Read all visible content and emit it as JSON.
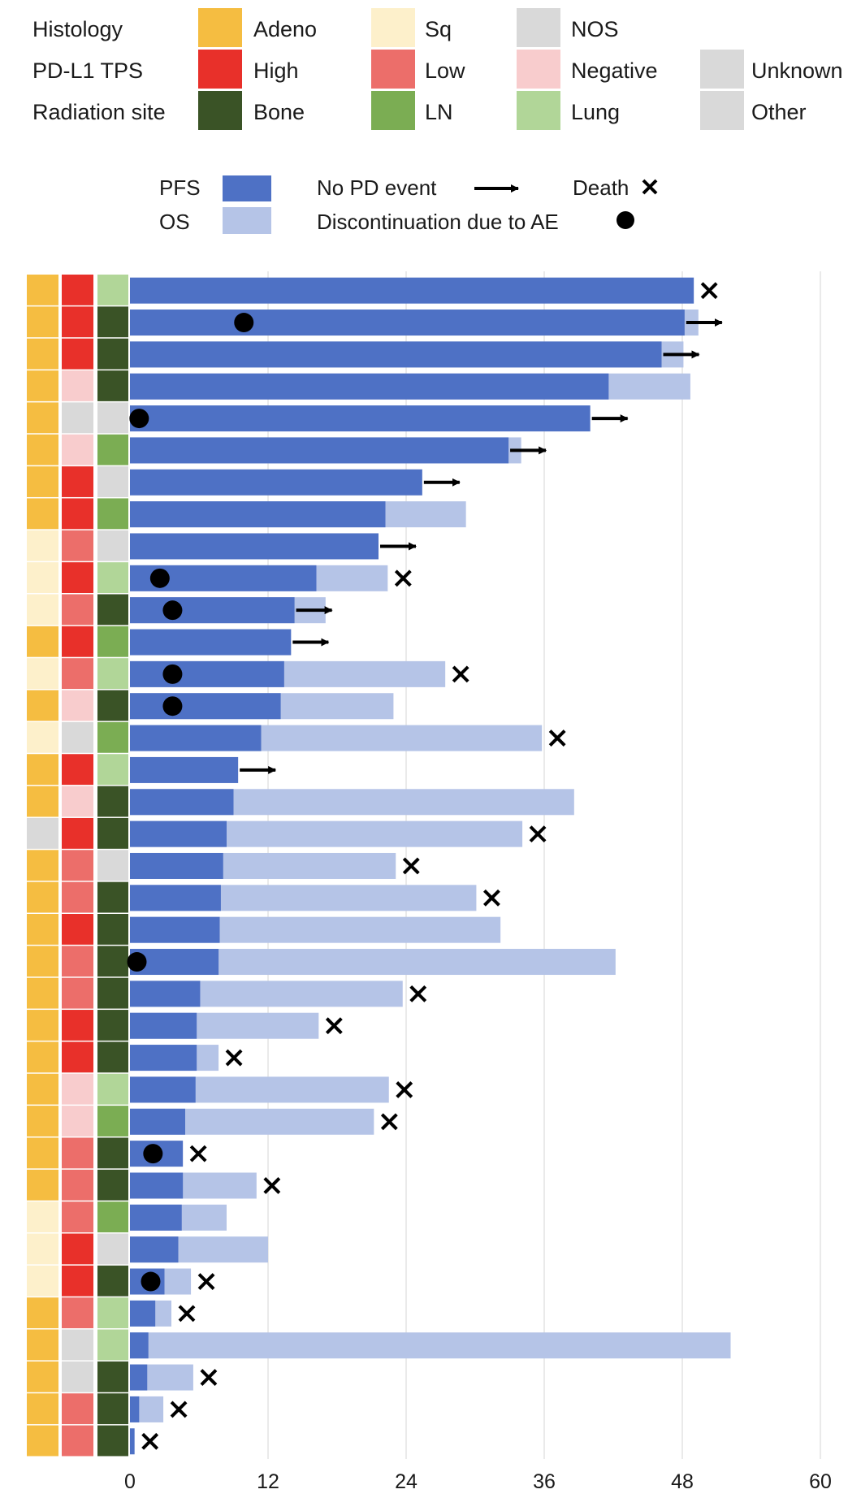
{
  "colors": {
    "adeno": "#f5bd41",
    "sq": "#fdf0cb",
    "nos": "#d9d9d9",
    "high": "#e8302a",
    "low": "#ec6e6a",
    "negative": "#f8cccd",
    "unknown": "#d9d9d9",
    "bone": "#3a5326",
    "ln": "#7bad53",
    "lung": "#b1d698",
    "other": "#d9d9d9",
    "pfs": "#4e71c5",
    "os": "#b5c4e7",
    "grid": "#e3e3e3",
    "marker": "#000000"
  },
  "legend": {
    "row_labels": [
      "Histology",
      "PD-L1 TPS",
      "Radiation site"
    ],
    "categories": [
      {
        "label": "Adeno",
        "color": "adeno"
      },
      {
        "label": "Sq",
        "color": "sq"
      },
      {
        "label": "NOS",
        "color": "nos"
      },
      {
        "label": "High",
        "color": "high"
      },
      {
        "label": "Low",
        "color": "low"
      },
      {
        "label": "Negative",
        "color": "negative"
      },
      {
        "label": "Unknown",
        "color": "unknown"
      },
      {
        "label": "Bone",
        "color": "bone"
      },
      {
        "label": "LN",
        "color": "ln"
      },
      {
        "label": "Lung",
        "color": "lung"
      },
      {
        "label": "Other",
        "color": "other"
      }
    ],
    "pfs_label": "PFS",
    "os_label": "OS",
    "no_pd_label": "No PD event",
    "death_label": "Death",
    "ae_label": "Discontinuation due to AE"
  },
  "chart_data": {
    "type": "bar",
    "orientation": "horizontal",
    "title": "",
    "xlabel": "",
    "ylabel": "",
    "xlim": [
      0,
      60
    ],
    "xticks": [
      0,
      12,
      24,
      36,
      48,
      60
    ],
    "grid": true,
    "series_names": [
      "PFS",
      "OS"
    ],
    "patients": [
      {
        "histology": "Adeno",
        "pdl1": "High",
        "site": "Lung",
        "pfs": 49.0,
        "os": 49.0,
        "death": true,
        "ongoing": false,
        "ae": null
      },
      {
        "histology": "Adeno",
        "pdl1": "High",
        "site": "Bone",
        "pfs": 48.2,
        "os": 49.4,
        "death": false,
        "ongoing": true,
        "ae": 9.9
      },
      {
        "histology": "Adeno",
        "pdl1": "High",
        "site": "Bone",
        "pfs": 46.2,
        "os": 48.1,
        "death": false,
        "ongoing": true,
        "ae": null
      },
      {
        "histology": "Adeno",
        "pdl1": "Negative",
        "site": "Bone",
        "pfs": 41.6,
        "os": 48.7,
        "death": false,
        "ongoing": false,
        "ae": null
      },
      {
        "histology": "Adeno",
        "pdl1": "Unknown",
        "site": "Other",
        "pfs": 40.0,
        "os": 40.0,
        "death": false,
        "ongoing": true,
        "ae": 0.8
      },
      {
        "histology": "Adeno",
        "pdl1": "Negative",
        "site": "LN",
        "pfs": 32.9,
        "os": 34.0,
        "death": false,
        "ongoing": true,
        "ae": null
      },
      {
        "histology": "Adeno",
        "pdl1": "High",
        "site": "Other",
        "pfs": 25.4,
        "os": 25.4,
        "death": false,
        "ongoing": true,
        "ae": null
      },
      {
        "histology": "Adeno",
        "pdl1": "High",
        "site": "LN",
        "pfs": 22.2,
        "os": 29.2,
        "death": false,
        "ongoing": false,
        "ae": null
      },
      {
        "histology": "Sq",
        "pdl1": "Low",
        "site": "Other",
        "pfs": 21.6,
        "os": 21.6,
        "death": false,
        "ongoing": true,
        "ae": null
      },
      {
        "histology": "Sq",
        "pdl1": "High",
        "site": "Lung",
        "pfs": 16.2,
        "os": 22.4,
        "death": true,
        "ongoing": false,
        "ae": 2.6
      },
      {
        "histology": "Sq",
        "pdl1": "Low",
        "site": "Bone",
        "pfs": 14.3,
        "os": 17.0,
        "death": false,
        "ongoing": true,
        "ae": 3.7
      },
      {
        "histology": "Adeno",
        "pdl1": "High",
        "site": "LN",
        "pfs": 14.0,
        "os": 14.0,
        "death": false,
        "ongoing": true,
        "ae": null
      },
      {
        "histology": "Sq",
        "pdl1": "Low",
        "site": "Lung",
        "pfs": 13.4,
        "os": 27.4,
        "death": true,
        "ongoing": false,
        "ae": 3.7
      },
      {
        "histology": "Adeno",
        "pdl1": "Negative",
        "site": "Bone",
        "pfs": 13.1,
        "os": 22.9,
        "death": false,
        "ongoing": false,
        "ae": 3.7
      },
      {
        "histology": "Sq",
        "pdl1": "Unknown",
        "site": "LN",
        "pfs": 11.4,
        "os": 35.8,
        "death": true,
        "ongoing": false,
        "ae": null
      },
      {
        "histology": "Adeno",
        "pdl1": "High",
        "site": "Lung",
        "pfs": 9.4,
        "os": 9.4,
        "death": false,
        "ongoing": true,
        "ae": null
      },
      {
        "histology": "Adeno",
        "pdl1": "Negative",
        "site": "Bone",
        "pfs": 9.0,
        "os": 38.6,
        "death": false,
        "ongoing": false,
        "ae": null
      },
      {
        "histology": "NOS",
        "pdl1": "High",
        "site": "Bone",
        "pfs": 8.4,
        "os": 34.1,
        "death": true,
        "ongoing": false,
        "ae": null
      },
      {
        "histology": "Adeno",
        "pdl1": "Low",
        "site": "Other",
        "pfs": 8.1,
        "os": 23.1,
        "death": true,
        "ongoing": false,
        "ae": null
      },
      {
        "histology": "Adeno",
        "pdl1": "Low",
        "site": "Bone",
        "pfs": 7.9,
        "os": 30.1,
        "death": true,
        "ongoing": false,
        "ae": null
      },
      {
        "histology": "Adeno",
        "pdl1": "High",
        "site": "Bone",
        "pfs": 7.8,
        "os": 32.2,
        "death": false,
        "ongoing": false,
        "ae": null
      },
      {
        "histology": "Adeno",
        "pdl1": "Low",
        "site": "Bone",
        "pfs": 7.7,
        "os": 42.2,
        "death": false,
        "ongoing": false,
        "ae": 0.6
      },
      {
        "histology": "Adeno",
        "pdl1": "Low",
        "site": "Bone",
        "pfs": 6.1,
        "os": 23.7,
        "death": true,
        "ongoing": false,
        "ae": null
      },
      {
        "histology": "Adeno",
        "pdl1": "High",
        "site": "Bone",
        "pfs": 5.8,
        "os": 16.4,
        "death": true,
        "ongoing": false,
        "ae": null
      },
      {
        "histology": "Adeno",
        "pdl1": "High",
        "site": "Bone",
        "pfs": 5.8,
        "os": 7.7,
        "death": true,
        "ongoing": false,
        "ae": null
      },
      {
        "histology": "Adeno",
        "pdl1": "Negative",
        "site": "Lung",
        "pfs": 5.7,
        "os": 22.5,
        "death": true,
        "ongoing": false,
        "ae": null
      },
      {
        "histology": "Adeno",
        "pdl1": "Negative",
        "site": "LN",
        "pfs": 4.8,
        "os": 21.2,
        "death": true,
        "ongoing": false,
        "ae": null
      },
      {
        "histology": "Adeno",
        "pdl1": "Low",
        "site": "Bone",
        "pfs": 4.6,
        "os": 4.6,
        "death": true,
        "ongoing": false,
        "ae": 2.0
      },
      {
        "histology": "Adeno",
        "pdl1": "Low",
        "site": "Bone",
        "pfs": 4.6,
        "os": 11.0,
        "death": true,
        "ongoing": false,
        "ae": null
      },
      {
        "histology": "Sq",
        "pdl1": "Low",
        "site": "LN",
        "pfs": 4.5,
        "os": 8.4,
        "death": false,
        "ongoing": false,
        "ae": null
      },
      {
        "histology": "Sq",
        "pdl1": "High",
        "site": "Other",
        "pfs": 4.2,
        "os": 12.0,
        "death": false,
        "ongoing": false,
        "ae": null
      },
      {
        "histology": "Sq",
        "pdl1": "High",
        "site": "Bone",
        "pfs": 3.0,
        "os": 5.3,
        "death": true,
        "ongoing": false,
        "ae": 1.8
      },
      {
        "histology": "Adeno",
        "pdl1": "Low",
        "site": "Lung",
        "pfs": 2.2,
        "os": 3.6,
        "death": true,
        "ongoing": false,
        "ae": null
      },
      {
        "histology": "Adeno",
        "pdl1": "Unknown",
        "site": "Lung",
        "pfs": 1.6,
        "os": 52.2,
        "death": false,
        "ongoing": false,
        "ae": null
      },
      {
        "histology": "Adeno",
        "pdl1": "Unknown",
        "site": "Bone",
        "pfs": 1.5,
        "os": 5.5,
        "death": true,
        "ongoing": false,
        "ae": null
      },
      {
        "histology": "Adeno",
        "pdl1": "Low",
        "site": "Bone",
        "pfs": 0.8,
        "os": 2.9,
        "death": true,
        "ongoing": false,
        "ae": null
      },
      {
        "histology": "Adeno",
        "pdl1": "Low",
        "site": "Bone",
        "pfs": 0.4,
        "os": 0.4,
        "death": true,
        "ongoing": false,
        "ae": null
      }
    ]
  }
}
